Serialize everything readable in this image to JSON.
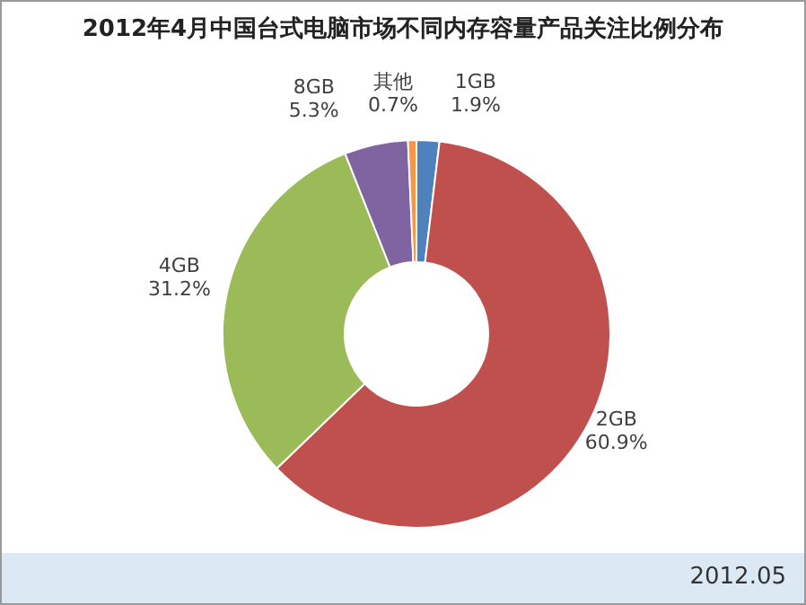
{
  "chart_data": {
    "type": "donut",
    "title": "2012年4月中国台式电脑市场不同内存容量产品关注比例分布",
    "categories": [
      "1GB",
      "2GB",
      "4GB",
      "8GB",
      "其他"
    ],
    "values": [
      1.9,
      60.9,
      31.2,
      5.3,
      0.7
    ],
    "value_labels": [
      "1.9%",
      "60.9%",
      "31.2%",
      "5.3%",
      "0.7%"
    ],
    "colors": [
      "#4f81bd",
      "#c0504d",
      "#9bbb59",
      "#8064a2",
      "#f79646"
    ],
    "annotations": [
      "2012.05"
    ]
  }
}
